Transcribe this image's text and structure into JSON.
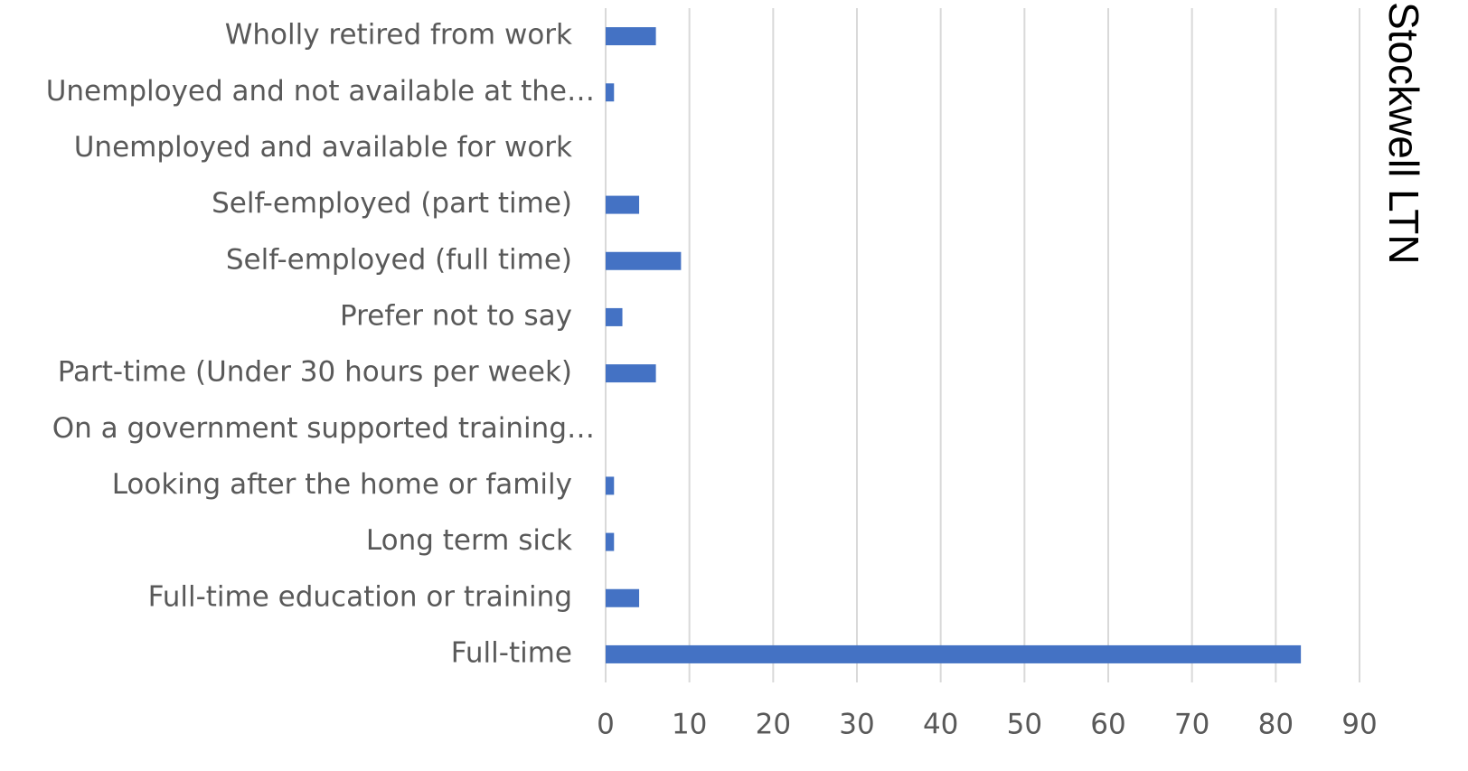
{
  "chart_data": {
    "type": "barh",
    "series_name": "Stockwell LTN",
    "categories": [
      "Full-time",
      "Full-time education or training",
      "Long term sick",
      "Looking after the home or family",
      "On a government supported training…",
      "Part-time (Under 30 hours per week)",
      "Prefer not to say",
      "Self-employed (full time)",
      "Self-employed (part time)",
      "Unemployed and available for work",
      "Unemployed and not available at the…",
      "Wholly retired from work"
    ],
    "values": [
      83,
      4,
      1,
      1,
      0,
      6,
      2,
      9,
      4,
      0,
      1,
      6
    ],
    "color": "#4472c4",
    "xlim": [
      0,
      90
    ],
    "xticks": [
      0,
      10,
      20,
      30,
      40,
      50,
      60,
      70,
      80,
      90
    ],
    "grid": true
  }
}
